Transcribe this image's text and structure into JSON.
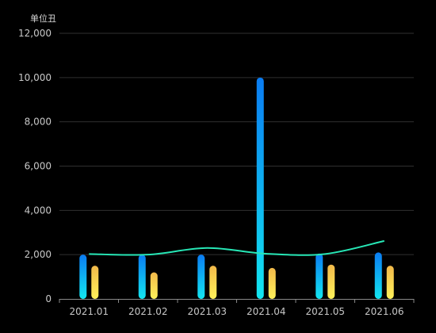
{
  "chart_data": {
    "type": "bar",
    "unit_label": "单位丑",
    "categories": [
      "2021.01",
      "2021.02",
      "2021.03",
      "2021.04",
      "2021.05",
      "2021.06"
    ],
    "series": [
      {
        "values": [
          2000,
          2000,
          2000,
          10000,
          2050,
          2100
        ],
        "kind": "bar",
        "color_top": "#0a7cf2",
        "color_bottom": "#13e6f0"
      },
      {
        "values": [
          1500,
          1200,
          1500,
          1400,
          1550,
          1500
        ],
        "kind": "bar",
        "color_top": "#f1b94a",
        "color_bottom": "#fff25a"
      },
      {
        "values": [
          2030,
          2000,
          2300,
          2040,
          2030,
          2620
        ],
        "kind": "line",
        "color": "#27e7b6"
      }
    ],
    "y_ticks": [
      "0",
      "2,000",
      "4,000",
      "6,000",
      "8,000",
      "10,000",
      "12,000"
    ],
    "ylim": [
      0,
      12000
    ],
    "grid": true
  }
}
